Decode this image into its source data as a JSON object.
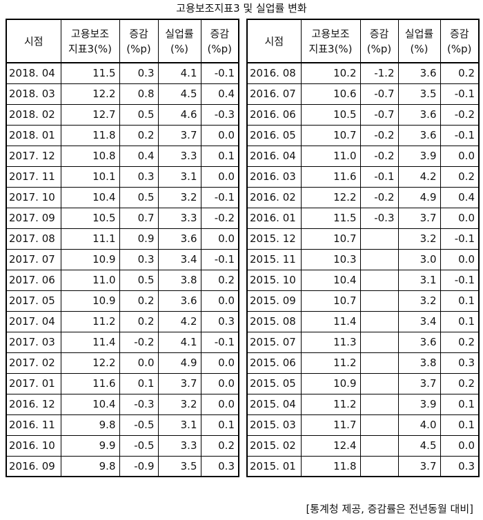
{
  "title": "고용보조지표3 및 실업률 변화",
  "headers": [
    [
      "시점"
    ],
    [
      "고용보조",
      "지표3(%)"
    ],
    [
      "증감",
      "(%p)"
    ],
    [
      "실업률",
      "(%)"
    ],
    [
      "증감",
      "(%p)"
    ]
  ],
  "left_rows": [
    [
      "2018. 04",
      "11.5",
      "0.3",
      "4.1",
      "-0.1"
    ],
    [
      "2018. 03",
      "12.2",
      "0.8",
      "4.5",
      "0.4"
    ],
    [
      "2018. 02",
      "12.7",
      "0.5",
      "4.6",
      "-0.3"
    ],
    [
      "2018. 01",
      "11.8",
      "0.2",
      "3.7",
      "0.0"
    ],
    [
      "2017. 12",
      "10.8",
      "0.4",
      "3.3",
      "0.1"
    ],
    [
      "2017. 11",
      "10.1",
      "0.3",
      "3.1",
      "0.0"
    ],
    [
      "2017. 10",
      "10.4",
      "0.5",
      "3.2",
      "-0.1"
    ],
    [
      "2017. 09",
      "10.5",
      "0.7",
      "3.3",
      "-0.2"
    ],
    [
      "2017. 08",
      "11.1",
      "0.9",
      "3.6",
      "0.0"
    ],
    [
      "2017. 07",
      "10.9",
      "0.3",
      "3.4",
      "-0.1"
    ],
    [
      "2017. 06",
      "11.0",
      "0.5",
      "3.8",
      "0.2"
    ],
    [
      "2017. 05",
      "10.9",
      "0.2",
      "3.6",
      "0.0"
    ],
    [
      "2017. 04",
      "11.2",
      "0.2",
      "4.2",
      "0.3"
    ],
    [
      "2017. 03",
      "11.4",
      "-0.2",
      "4.1",
      "-0.1"
    ],
    [
      "2017. 02",
      "12.2",
      "0.0",
      "4.9",
      "0.0"
    ],
    [
      "2017. 01",
      "11.6",
      "0.1",
      "3.7",
      "0.0"
    ],
    [
      "2016. 12",
      "10.4",
      "-0.3",
      "3.2",
      "0.0"
    ],
    [
      "2016. 11",
      "9.8",
      "-0.5",
      "3.1",
      "0.1"
    ],
    [
      "2016. 10",
      "9.9",
      "-0.5",
      "3.3",
      "0.2"
    ],
    [
      "2016. 09",
      "9.8",
      "-0.9",
      "3.5",
      "0.3"
    ]
  ],
  "right_rows": [
    [
      "2016. 08",
      "10.2",
      "-1.2",
      "3.6",
      "0.2"
    ],
    [
      "2016. 07",
      "10.6",
      "-0.7",
      "3.5",
      "-0.1"
    ],
    [
      "2016. 06",
      "10.5",
      "-0.7",
      "3.6",
      "-0.2"
    ],
    [
      "2016. 05",
      "10.7",
      "-0.2",
      "3.6",
      "-0.1"
    ],
    [
      "2016. 04",
      "11.0",
      "-0.2",
      "3.9",
      "0.0"
    ],
    [
      "2016. 03",
      "11.6",
      "-0.1",
      "4.2",
      "0.2"
    ],
    [
      "2016. 02",
      "12.2",
      "-0.2",
      "4.9",
      "0.4"
    ],
    [
      "2016. 01",
      "11.5",
      "-0.3",
      "3.7",
      "0.0"
    ],
    [
      "2015. 12",
      "10.7",
      "",
      "3.2",
      "-0.1"
    ],
    [
      "2015. 11",
      "10.3",
      "",
      "3.0",
      "0.0"
    ],
    [
      "2015. 10",
      "10.4",
      "",
      "3.1",
      "-0.1"
    ],
    [
      "2015. 09",
      "10.7",
      "",
      "3.2",
      "0.1"
    ],
    [
      "2015. 08",
      "11.4",
      "",
      "3.4",
      "0.1"
    ],
    [
      "2015. 07",
      "11.3",
      "",
      "3.6",
      "0.2"
    ],
    [
      "2015. 06",
      "11.2",
      "",
      "3.8",
      "0.3"
    ],
    [
      "2015. 05",
      "10.9",
      "",
      "3.7",
      "0.2"
    ],
    [
      "2015. 04",
      "11.2",
      "",
      "3.9",
      "0.1"
    ],
    [
      "2015. 03",
      "11.7",
      "",
      "4.0",
      "0.1"
    ],
    [
      "2015. 02",
      "12.4",
      "",
      "4.5",
      "0.0"
    ],
    [
      "2015. 01",
      "11.8",
      "",
      "3.7",
      "0.3"
    ]
  ],
  "footer": "[통계청 제공, 증감률은 전년동월 대비]"
}
